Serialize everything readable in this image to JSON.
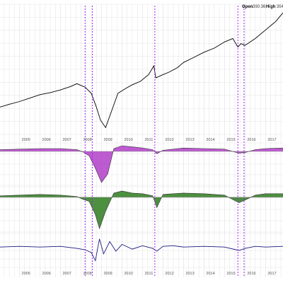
{
  "header": {
    "open_label": "Open",
    "open_value": "360.36",
    "high_label": "High",
    "high_value": "394"
  },
  "chart_data": {
    "type": "line",
    "title": "",
    "x_tick_labels": [
      "2005",
      "2006",
      "2007",
      "2008",
      "2009",
      "2010",
      "2011",
      "2012",
      "2013",
      "2014",
      "2015",
      "2016",
      "2017"
    ],
    "x_range": [
      2004.05,
      2017.85
    ],
    "grid": true,
    "event_lines": [
      2008.2,
      2008.55,
      2011.6,
      2015.65,
      2015.95
    ],
    "colors": {
      "price": "#000000",
      "panel1": "#b23ec9",
      "panel2": "#2e7d1e",
      "panel3": "#1a1a80",
      "event": "#a020f0",
      "grid": "#e3e3e3"
    },
    "panels": [
      {
        "name": "price",
        "type": "line",
        "color": "#000000",
        "ylim": [
          40,
          420
        ],
        "x": [
          2004.05,
          2004.5,
          2005.0,
          2005.5,
          2006.0,
          2006.5,
          2007.0,
          2007.5,
          2007.8,
          2008.2,
          2008.5,
          2008.75,
          2008.95,
          2009.2,
          2009.5,
          2009.8,
          2010.2,
          2010.5,
          2010.9,
          2011.3,
          2011.55,
          2011.65,
          2011.9,
          2012.3,
          2012.7,
          2013.0,
          2013.5,
          2014.0,
          2014.5,
          2015.0,
          2015.4,
          2015.65,
          2015.8,
          2016.0,
          2016.5,
          2017.0,
          2017.5,
          2017.85
        ],
        "y": [
          120,
          128,
          136,
          146,
          156,
          162,
          170,
          180,
          188,
          178,
          160,
          120,
          82,
          60,
          110,
          160,
          175,
          185,
          195,
          215,
          240,
          205,
          212,
          222,
          235,
          250,
          265,
          280,
          292,
          310,
          320,
          295,
          305,
          300,
          320,
          345,
          370,
          395
        ]
      },
      {
        "name": "panel-1",
        "type": "area",
        "color": "#b23ec9",
        "ylim": [
          -60,
          15
        ],
        "x": [
          2004.05,
          2005.0,
          2006.0,
          2007.0,
          2007.8,
          2008.1,
          2008.4,
          2008.7,
          2009.0,
          2009.3,
          2009.6,
          2010.0,
          2010.5,
          2011.0,
          2011.5,
          2011.7,
          2012.0,
          2012.5,
          2013.0,
          2014.0,
          2015.0,
          2015.7,
          2016.0,
          2016.5,
          2017.0,
          2017.85
        ],
        "y": [
          3,
          4,
          5,
          5,
          3,
          -1,
          -8,
          -30,
          -55,
          -40,
          5,
          10,
          8,
          6,
          3,
          -4,
          2,
          4,
          6,
          5,
          4,
          -3,
          -2,
          3,
          5,
          6
        ]
      },
      {
        "name": "panel-2",
        "type": "area",
        "color": "#2e7d1e",
        "ylim": [
          -50,
          15
        ],
        "x": [
          2004.05,
          2005.0,
          2006.0,
          2007.0,
          2007.8,
          2008.1,
          2008.4,
          2008.7,
          2008.9,
          2009.2,
          2009.6,
          2010.0,
          2010.5,
          2011.0,
          2011.5,
          2011.7,
          2012.0,
          2012.5,
          2013.0,
          2014.0,
          2015.0,
          2015.7,
          2016.0,
          2016.5,
          2017.0,
          2017.85
        ],
        "y": [
          2,
          3,
          4,
          3,
          1,
          -3,
          -6,
          -25,
          -45,
          -20,
          6,
          9,
          6,
          5,
          2,
          -15,
          4,
          5,
          6,
          5,
          3,
          -8,
          -4,
          3,
          5,
          5
        ]
      },
      {
        "name": "panel-3",
        "type": "line",
        "color": "#1a1a80",
        "ylim": [
          -30,
          20
        ],
        "x": [
          2004.05,
          2005.0,
          2006.0,
          2007.0,
          2007.8,
          2008.2,
          2008.5,
          2008.7,
          2008.9,
          2009.1,
          2009.4,
          2009.7,
          2010.0,
          2010.5,
          2011.0,
          2011.5,
          2011.7,
          2012.0,
          2012.5,
          2013.0,
          2014.0,
          2015.0,
          2015.7,
          2016.0,
          2016.5,
          2017.0,
          2017.85
        ],
        "y": [
          0,
          1,
          0,
          1,
          -2,
          -4,
          -8,
          -20,
          12,
          -10,
          8,
          -6,
          4,
          -3,
          2,
          -2,
          -6,
          1,
          2,
          0,
          1,
          0,
          -5,
          -2,
          1,
          0,
          1
        ]
      }
    ]
  }
}
